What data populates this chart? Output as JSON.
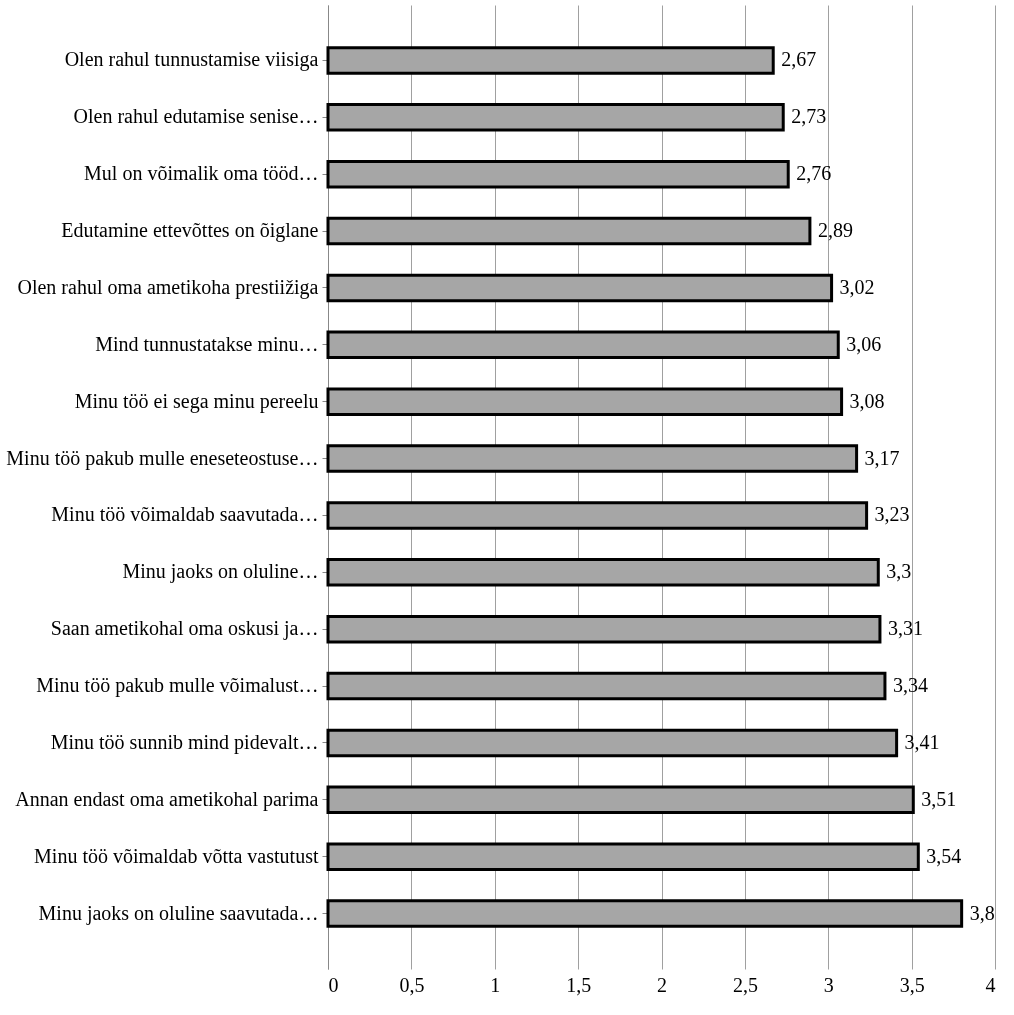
{
  "chart_data": {
    "type": "bar",
    "orientation": "horizontal",
    "categories": [
      "Olen rahul tunnustamise viisiga",
      "Olen rahul edutamise senise…",
      "Mul on võimalik oma tööd…",
      "Edutamine ettevõttes on õiglane",
      "Olen rahul oma ametikoha prestiižiga",
      "Mind tunnustatakse minu…",
      "Minu töö ei sega minu pereelu",
      "Minu töö pakub mulle eneseteostuse…",
      "Minu töö võimaldab saavutada…",
      "Minu jaoks on oluline…",
      "Saan ametikohal oma oskusi ja…",
      "Minu töö pakub mulle võimalust…",
      "Minu töö sunnib mind pidevalt…",
      "Annan endast oma ametikohal parima",
      "Minu töö võimaldab võtta vastutust",
      "Minu jaoks on oluline saavutada…"
    ],
    "values": [
      2.67,
      2.73,
      2.76,
      2.89,
      3.02,
      3.06,
      3.08,
      3.17,
      3.23,
      3.3,
      3.31,
      3.34,
      3.41,
      3.51,
      3.54,
      3.8
    ],
    "value_labels": [
      "2,67",
      "2,73",
      "2,76",
      "2,89",
      "3,02",
      "3,06",
      "3,08",
      "3,17",
      "3,23",
      "3,3",
      "3,31",
      "3,34",
      "3,41",
      "3,51",
      "3,54",
      "3,8"
    ],
    "color": "#a6a6a6",
    "xlim": [
      0,
      4
    ],
    "xticks": [
      0,
      {
        "value": 0.5,
        "label": "0,5"
      },
      1,
      {
        "value": 1.5,
        "label": "1,5"
      },
      2,
      {
        "value": 2.5,
        "label": "2,5"
      },
      3,
      {
        "value": 3.5,
        "label": "3,5"
      },
      4
    ],
    "grid": "x"
  }
}
